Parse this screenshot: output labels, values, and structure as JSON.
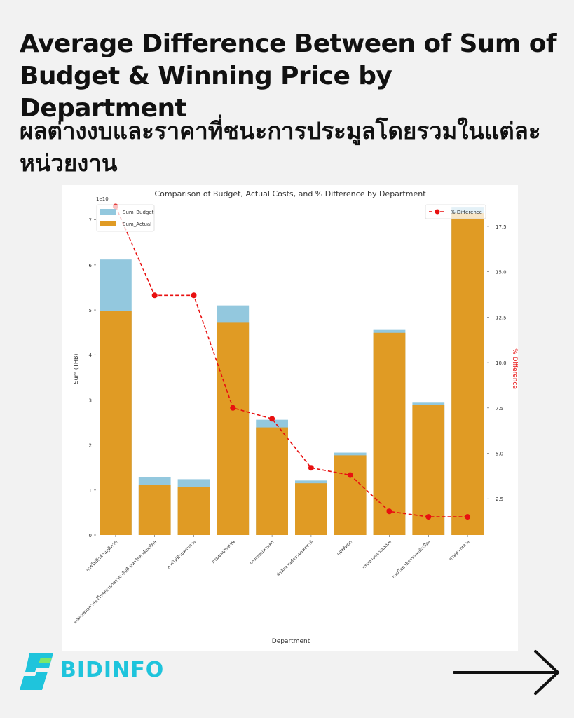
{
  "headline": {
    "en": "Average Difference Between of Sum of Budget & Winning Price by Department",
    "th": "ผลต่างงบและราคาที่ชนะการประมูลโดยรวมในแต่ละหน่วยงาน"
  },
  "brand": {
    "name": "BIDINFO",
    "logo_icon": "bolt-s-icon",
    "color": "#1fc4dc"
  },
  "navigation": {
    "next_icon": "arrow-right-icon"
  },
  "chart_data": {
    "type": "bar",
    "title": "Comparison of Budget, Actual Costs, and % Difference by Department",
    "xlabel": "Department",
    "ylabel": "Sum (THB)",
    "y_offset_label": "1e10",
    "y2label": "% Difference",
    "ylim": [
      0,
      7.4
    ],
    "y_ticks": [
      0,
      1,
      2,
      3,
      4,
      5,
      6,
      7
    ],
    "y2lim": [
      0.5,
      18.85
    ],
    "y2_ticks": [
      2.5,
      5.0,
      7.5,
      10.0,
      12.5,
      15.0,
      17.5
    ],
    "y2_tick_labels": [
      "2.5",
      "5.0",
      "7.5",
      "10.0",
      "12.5",
      "15.0",
      "17.5"
    ],
    "categories": [
      "การไฟฟ้าส่วนภูมิภาค",
      "คณะแพทยศาสตร์โรงพยาบาลรามาธิบดี มหาวิทยาลัยมหิดล",
      "การไฟฟ้านครหลวง",
      "กรมชลประทาน",
      "กรุงเทพมหานคร",
      "สำนักงานตำรวจแห่งชาติ",
      "กองทัพบก",
      "กรมทางหลวงชนบท",
      "กรมโยธาธิการและผังเมือง",
      "กรมทางหลวง"
    ],
    "series": [
      {
        "name": "Sum_Budget",
        "color": "#93c8de",
        "values": [
          6.12,
          1.29,
          1.24,
          5.1,
          2.56,
          1.21,
          1.83,
          4.57,
          2.94,
          7.29
        ]
      },
      {
        "name": "Sum_Actual",
        "color": "#e09b24",
        "values": [
          4.98,
          1.11,
          1.06,
          4.73,
          2.39,
          1.15,
          1.77,
          4.49,
          2.89,
          7.15
        ]
      }
    ],
    "line_series": {
      "name": "% Difference",
      "color": "#e81010",
      "axis": "right",
      "values": [
        18.6,
        13.7,
        13.7,
        7.5,
        6.9,
        4.2,
        3.8,
        1.8,
        1.5,
        1.5
      ]
    },
    "legend_left": "top-left",
    "legend_right": "top-right",
    "grid": false
  }
}
